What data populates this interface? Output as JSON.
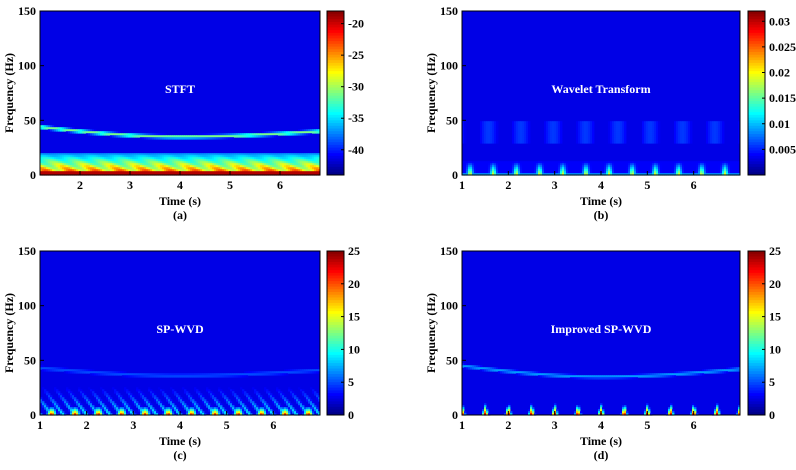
{
  "chart_data": [
    {
      "type": "heatmap",
      "panel_label": "STFT",
      "caption": "(a)",
      "xlabel": "Time (s)",
      "ylabel": "Frequency (Hz)",
      "xlim": [
        1.2,
        6.8
      ],
      "ylim": [
        0,
        150
      ],
      "xticks": [
        2,
        3,
        4,
        5,
        6
      ],
      "yticks": [
        0,
        50,
        100,
        150
      ],
      "colorbar_ticks": [
        -20,
        -25,
        -30,
        -35,
        -40
      ],
      "colorbar_range": [
        -44,
        -18
      ],
      "colormap": "jet",
      "features": {
        "ridge_hz_start": 44,
        "ridge_hz_min": 35,
        "ridge_hz_end": 40,
        "low_band_hz": [
          0,
          20
        ],
        "oscillation_period_s": 0.5
      }
    },
    {
      "type": "heatmap",
      "panel_label": "Wavelet Transform",
      "caption": "(b)",
      "xlabel": "Time (s)",
      "ylabel": "Frequency (Hz)",
      "xlim": [
        1,
        7
      ],
      "ylim": [
        0,
        150
      ],
      "xticks": [
        1,
        2,
        3,
        4,
        5,
        6
      ],
      "yticks": [
        0,
        50,
        100,
        150
      ],
      "colorbar_ticks": [
        0.03,
        0.025,
        0.02,
        0.015,
        0.01,
        0.005
      ],
      "colorbar_range": [
        0,
        0.032
      ],
      "colormap": "jet",
      "features": {
        "faint_band_hz": [
          30,
          50
        ],
        "burst_hz_max": 12,
        "burst_period_s": 0.5
      }
    },
    {
      "type": "heatmap",
      "panel_label": "SP-WVD",
      "caption": "(c)",
      "xlabel": "Time (s)",
      "ylabel": "Frequency (Hz)",
      "xlim": [
        1,
        7
      ],
      "ylim": [
        0,
        150
      ],
      "xticks": [
        1,
        2,
        3,
        4,
        5,
        6
      ],
      "yticks": [
        0,
        50,
        100,
        150
      ],
      "colorbar_ticks": [
        25,
        20,
        15,
        10,
        5,
        0
      ],
      "colorbar_range": [
        0,
        25
      ],
      "colormap": "jet",
      "features": {
        "ridge_hz_start": 43,
        "ridge_hz_min": 36,
        "ridge_hz_end": 41,
        "arc_band_hz": [
          0,
          28
        ],
        "oscillation_period_s": 0.5
      }
    },
    {
      "type": "heatmap",
      "panel_label": "Improved SP-WVD",
      "caption": "(d)",
      "xlabel": "Time (s)",
      "ylabel": "Frequency (Hz)",
      "xlim": [
        1,
        7
      ],
      "ylim": [
        0,
        150
      ],
      "xticks": [
        1,
        2,
        3,
        4,
        5,
        6
      ],
      "yticks": [
        0,
        50,
        100,
        150
      ],
      "colorbar_ticks": [
        25,
        20,
        15,
        10,
        5,
        0
      ],
      "colorbar_range": [
        0,
        25
      ],
      "colormap": "jet",
      "features": {
        "ridge_hz_start": 45,
        "ridge_hz_min": 35,
        "ridge_hz_end": 42,
        "spike_hz_max": 12,
        "spike_period_s": 0.5
      }
    }
  ]
}
